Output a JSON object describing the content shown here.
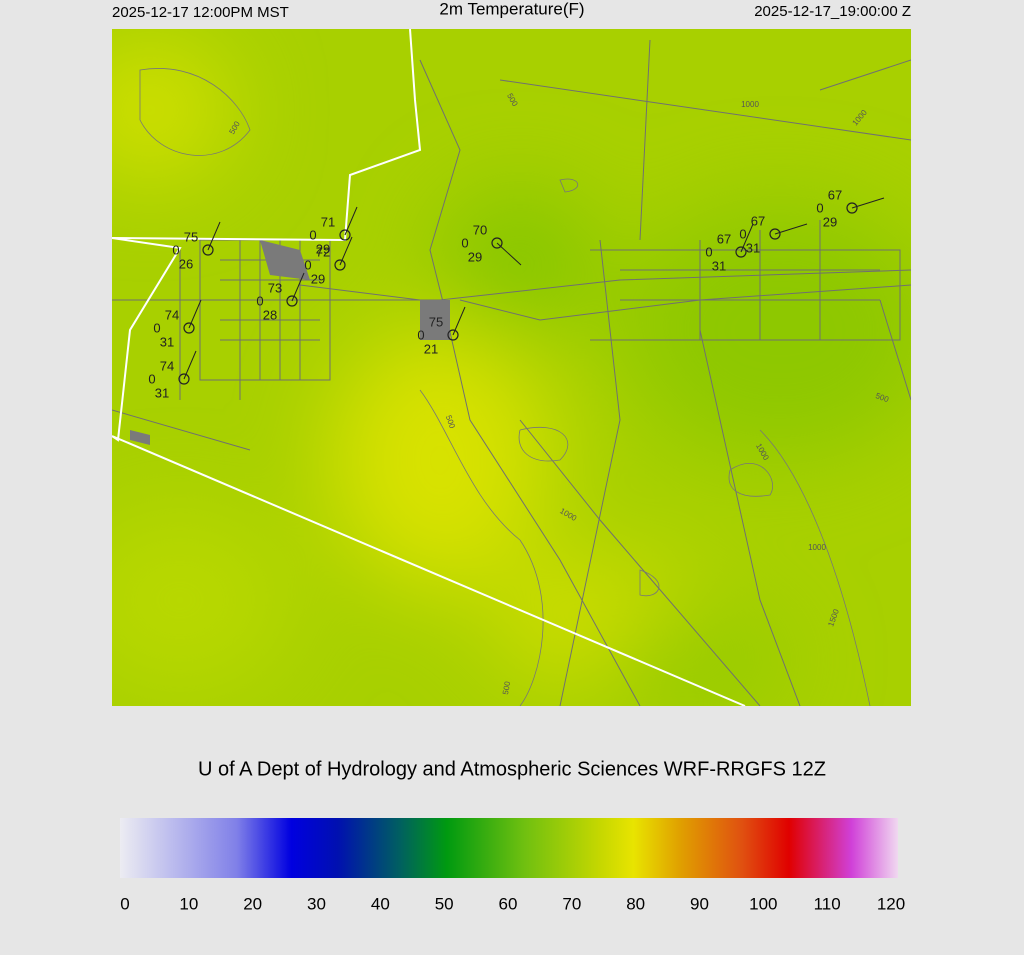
{
  "header": {
    "local_time": "2025-12-17 12:00PM MST",
    "title": "2m Temperature(F)",
    "utc_time": "2025-12-17_19:00:00 Z"
  },
  "stations": [
    {
      "temperature": "75",
      "wind": "0",
      "dewpoint": "26"
    },
    {
      "temperature": "71",
      "wind": "0",
      "dewpoint": "29"
    },
    {
      "temperature": "72",
      "wind": "0",
      "dewpoint": "29"
    },
    {
      "temperature": "73",
      "wind": "0",
      "dewpoint": "28"
    },
    {
      "temperature": "74",
      "wind": "0",
      "dewpoint": "31"
    },
    {
      "temperature": "74",
      "wind": "0",
      "dewpoint": "31"
    },
    {
      "temperature": "75",
      "wind": "0",
      "dewpoint": "21"
    },
    {
      "temperature": "70",
      "wind": "0",
      "dewpoint": "29"
    },
    {
      "temperature": "67",
      "wind": "0",
      "dewpoint": "31"
    },
    {
      "temperature": "67",
      "wind": "0",
      "dewpoint": "31"
    },
    {
      "temperature": "67",
      "wind": "0",
      "dewpoint": "29"
    }
  ],
  "contour_labels": [
    "500",
    "500",
    "500",
    "1000",
    "1000",
    "1000",
    "1000",
    "1000",
    "500",
    "500",
    "1500"
  ],
  "credit": "U of A Dept of Hydrology and Atmospheric Sciences WRF-RRGFS 12Z",
  "colorbar": {
    "ticks": [
      0,
      10,
      20,
      30,
      40,
      50,
      60,
      70,
      80,
      90,
      100,
      110,
      120
    ]
  }
}
